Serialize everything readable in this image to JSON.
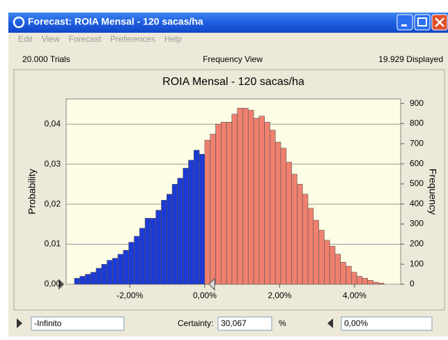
{
  "window": {
    "title": "Forecast: ROIA Mensal - 120 sacas/ha",
    "menu": [
      "Edit",
      "View",
      "Forecast",
      "Preferences",
      "Help"
    ]
  },
  "info": {
    "trials": "20.000 Trials",
    "view": "Frequency View",
    "displayed": "19.929 Displayed"
  },
  "chart_data": {
    "type": "histogram",
    "title": "ROIA Mensal - 120 sacas/ha",
    "y_label": "Probability",
    "y2_label": "Frequency",
    "bins": [
      -3.48,
      -3.335,
      -3.19,
      -3.045,
      -2.9,
      -2.755,
      -2.61,
      -2.465,
      -2.32,
      -2.175,
      -2.03,
      -1.885,
      -1.74,
      -1.595,
      -1.45,
      -1.305,
      -1.16,
      -1.015,
      -0.87,
      -0.725,
      -0.58,
      -0.435,
      -0.29,
      -0.145,
      0,
      0.145,
      0.29,
      0.435,
      0.58,
      0.725,
      0.87,
      1.015,
      1.16,
      1.305,
      1.45,
      1.595,
      1.74,
      1.885,
      2.03,
      2.175,
      2.32,
      2.465,
      2.61,
      2.755,
      2.9,
      3.045,
      3.19,
      3.335,
      3.48,
      3.625,
      3.77,
      3.915,
      4.06,
      4.205,
      4.35,
      4.495,
      4.64,
      4.785
    ],
    "values": [
      0.0015,
      0.002,
      0.0025,
      0.003,
      0.004,
      0.005,
      0.006,
      0.0065,
      0.0075,
      0.0085,
      0.0105,
      0.012,
      0.014,
      0.0165,
      0.0165,
      0.0185,
      0.021,
      0.0225,
      0.025,
      0.0265,
      0.029,
      0.031,
      0.0335,
      0.0325,
      0.036,
      0.0375,
      0.04,
      0.0405,
      0.0405,
      0.0425,
      0.044,
      0.044,
      0.0435,
      0.0415,
      0.042,
      0.0405,
      0.0385,
      0.0355,
      0.034,
      0.0305,
      0.0275,
      0.025,
      0.0225,
      0.019,
      0.016,
      0.0135,
      0.011,
      0.0095,
      0.0075,
      0.0055,
      0.0045,
      0.003,
      0.002,
      0.0015,
      0.001,
      0.0005,
      0.0003
    ],
    "colors": {
      "inside": "#1c3ad4",
      "outside": "#f0806e"
    },
    "xlim": [
      -3.7,
      5.23
    ],
    "xticks": [
      {
        "value": -2,
        "label": "-2,00%"
      },
      {
        "value": 0,
        "label": "0,00%"
      },
      {
        "value": 2,
        "label": "2,00%"
      },
      {
        "value": 4,
        "label": "4,00%"
      }
    ],
    "ylim": [
      0,
      0.0463
    ],
    "yticks": [
      {
        "value": 0,
        "label": "0,00"
      },
      {
        "value": 0.01,
        "label": "0,01"
      },
      {
        "value": 0.02,
        "label": "0,02"
      },
      {
        "value": 0.03,
        "label": "0,03"
      },
      {
        "value": 0.04,
        "label": "0,04"
      }
    ],
    "y2lim": [
      0,
      923
    ],
    "y2ticks": [
      0,
      100,
      200,
      300,
      400,
      500,
      600,
      700,
      800,
      900
    ],
    "grid": true
  },
  "certainty": {
    "lower": "-Infinito",
    "label": "Certainty:",
    "value": "30,067",
    "unit": "%",
    "upper": {
      "value": 0,
      "label": "0,00%"
    }
  }
}
